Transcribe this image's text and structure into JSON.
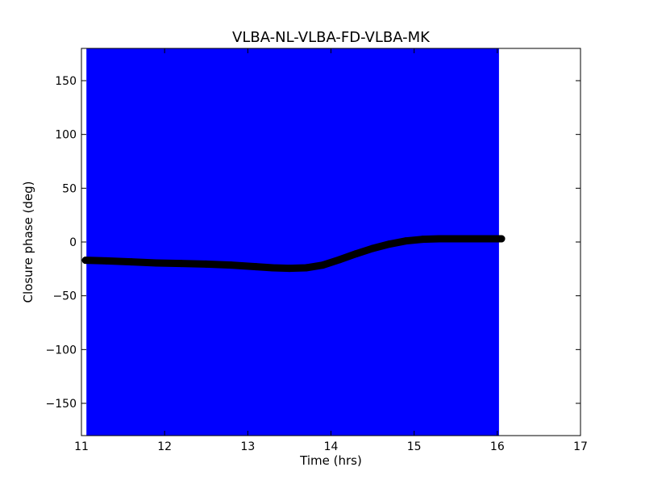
{
  "chart_data": {
    "type": "scatter",
    "title": "VLBA-NL-VLBA-FD-VLBA-MK",
    "xlabel": "Time (hrs)",
    "ylabel": "Closure phase (deg)",
    "xlim": [
      11,
      17
    ],
    "ylim": [
      -180,
      180
    ],
    "xticks": [
      11,
      12,
      13,
      14,
      15,
      16,
      17
    ],
    "xtick_labels": [
      "11",
      "12",
      "13",
      "14",
      "15",
      "16",
      "17"
    ],
    "yticks": [
      -150,
      -100,
      -50,
      0,
      50,
      100,
      150
    ],
    "ytick_labels": [
      "−150",
      "−100",
      "−50",
      "0",
      "50",
      "100",
      "150"
    ],
    "grid": false,
    "error_band": {
      "x_start": 11.06,
      "x_end": 16.02,
      "y_low": -180,
      "y_high": 180,
      "color": "#0000ff"
    },
    "series": [
      {
        "color": "#000000",
        "marker": "circle",
        "x": [
          11.05,
          11.3,
          11.6,
          11.9,
          12.2,
          12.5,
          12.8,
          13.1,
          13.3,
          13.5,
          13.7,
          13.9,
          14.1,
          14.3,
          14.5,
          14.7,
          14.9,
          15.1,
          15.3,
          15.5,
          15.7,
          15.9,
          16.05
        ],
        "y": [
          -17,
          -17.5,
          -18.5,
          -19.5,
          -20,
          -20.5,
          -21.5,
          -23,
          -24,
          -24.5,
          -24,
          -21.5,
          -16.5,
          -11,
          -6,
          -2,
          1,
          2.5,
          3,
          3,
          3,
          3,
          3
        ]
      }
    ]
  }
}
